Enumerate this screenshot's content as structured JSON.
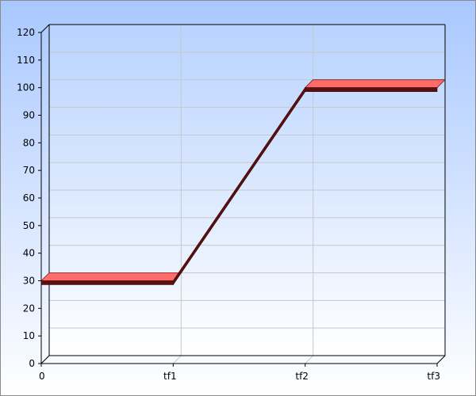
{
  "chart_data": {
    "type": "line",
    "title": "",
    "xlabel": "",
    "ylabel": "",
    "categories": [
      "0",
      "tf1",
      "tf2",
      "tf3"
    ],
    "ylim": [
      0,
      120
    ],
    "yticks": [
      0,
      10,
      20,
      30,
      40,
      50,
      60,
      70,
      80,
      90,
      100,
      110,
      120
    ],
    "grid": true,
    "series": [
      {
        "values": [
          30,
          30,
          100,
          100
        ]
      }
    ]
  },
  "colors": {
    "background_top": "#a9c8ff",
    "background_bottom": "#ffffff",
    "plot_top": "#b8d3ff",
    "plot_bottom": "#ffffff",
    "line_top": "#ff6b6b",
    "line_side": "#5a1010",
    "grid": "#c8c8c8"
  }
}
